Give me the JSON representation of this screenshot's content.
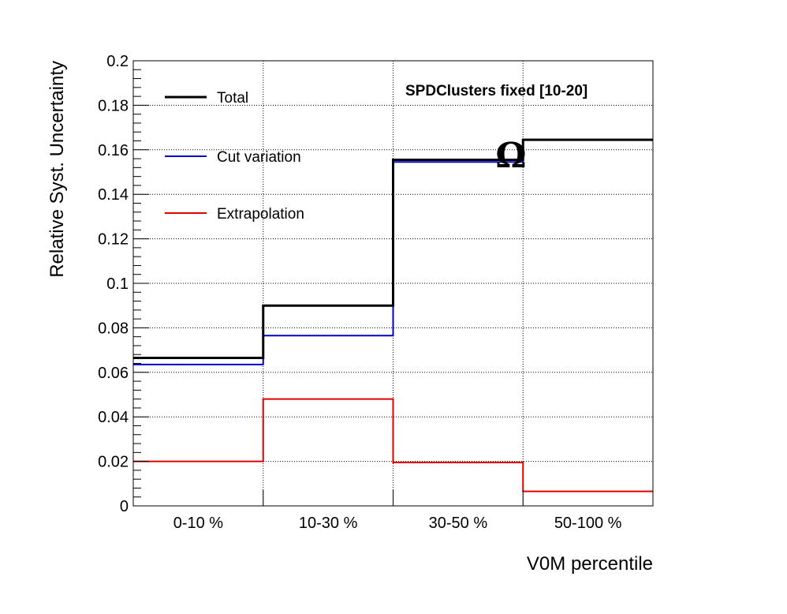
{
  "chart_data": {
    "type": "line",
    "step": true,
    "title": "",
    "xlabel": "V0M percentile",
    "ylabel": "Relative Syst. Uncertainty",
    "categories": [
      "0-10 %",
      "10-30 %",
      "30-50 %",
      "50-100 %"
    ],
    "ylim": [
      0,
      0.2
    ],
    "yticks": [
      "0",
      "0.02",
      "0.04",
      "0.06",
      "0.08",
      "0.1",
      "0.12",
      "0.14",
      "0.16",
      "0.18",
      "0.2"
    ],
    "grid": true,
    "legend_position": "top-left",
    "series": [
      {
        "name": "Total",
        "color": "#000000",
        "values": [
          0.0665,
          0.09,
          0.1555,
          0.1645
        ]
      },
      {
        "name": "Cut variation",
        "color": "#0000cc",
        "values": [
          0.0635,
          0.0765,
          0.1545,
          0.1645
        ]
      },
      {
        "name": "Extrapolation",
        "color": "#e00000",
        "values": [
          0.02,
          0.048,
          0.0195,
          0.0065
        ]
      }
    ],
    "annotations": [
      "SPDClusters fixed [10-20]",
      "Ω"
    ]
  }
}
